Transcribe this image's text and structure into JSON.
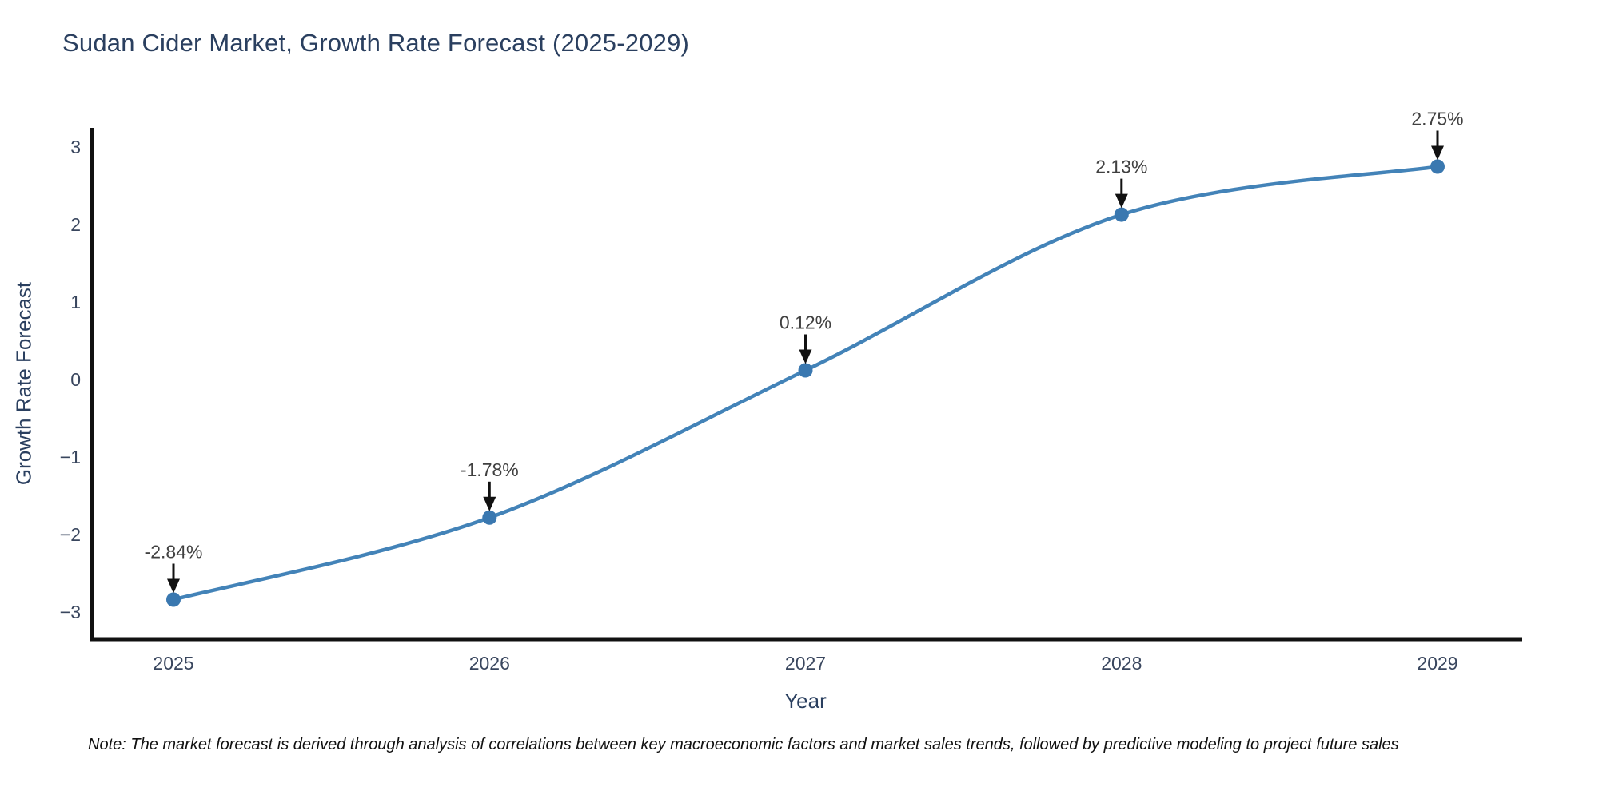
{
  "chart_data": {
    "type": "line",
    "title": "Sudan Cider Market, Growth Rate Forecast (2025-2029)",
    "xlabel": "Year",
    "ylabel": "Growth Rate Forecast",
    "categories": [
      "2025",
      "2026",
      "2027",
      "2028",
      "2029"
    ],
    "series": [
      {
        "name": "Growth Rate Forecast",
        "values": [
          -2.84,
          -1.78,
          0.12,
          2.13,
          2.75
        ]
      }
    ],
    "point_labels": [
      "-2.84%",
      "-1.78%",
      "0.12%",
      "2.13%",
      "2.75%"
    ],
    "yticks": [
      3,
      2,
      1,
      0,
      -1,
      -2,
      -3
    ],
    "ytick_labels": [
      "3",
      "2",
      "1",
      "0",
      "−1",
      "−2",
      "−3"
    ],
    "ylim": [
      -3.35,
      3.25
    ],
    "grid": false,
    "legend_position": "none",
    "line_shape": "spline",
    "colors": {
      "line": "#4383b8",
      "marker": "#3a78b0",
      "axis": "#111111",
      "arrow": "#111111",
      "title_text": "#2a3f5f",
      "axis_title_text": "#2a3f5f",
      "tick_text": "#39465e",
      "annotation_text": "#404040",
      "note_text": "#111111",
      "background": "#ffffff"
    }
  },
  "note": "Note: The market forecast is derived through analysis of correlations between key macroeconomic factors and market sales trends, followed by predictive modeling to project future sales"
}
